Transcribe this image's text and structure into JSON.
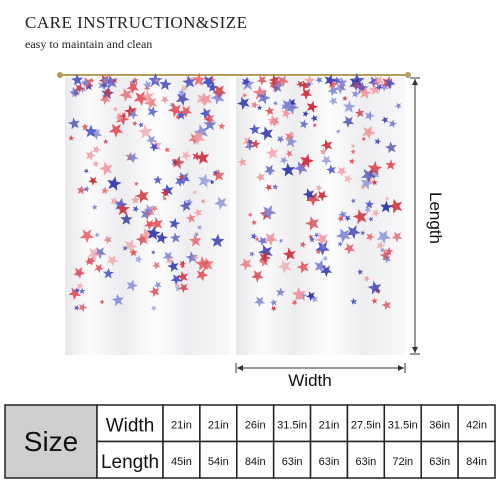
{
  "header": {
    "title": "CARE INSTRUCTION&SIZE",
    "subtitle": "easy to maintain and clean"
  },
  "diagram": {
    "length_label": "Length",
    "width_label": "Width"
  },
  "table": {
    "title": "Size",
    "rows": [
      {
        "label": "Width",
        "cells": [
          "21in",
          "21in",
          "26in",
          "31.5in",
          "21in",
          "27.5in",
          "31.5in",
          "36in",
          "42in"
        ]
      },
      {
        "label": "Length",
        "cells": [
          "45in",
          "54in",
          "84in",
          "63in",
          "63in",
          "63in",
          "72in",
          "63in",
          "84in"
        ]
      }
    ]
  }
}
